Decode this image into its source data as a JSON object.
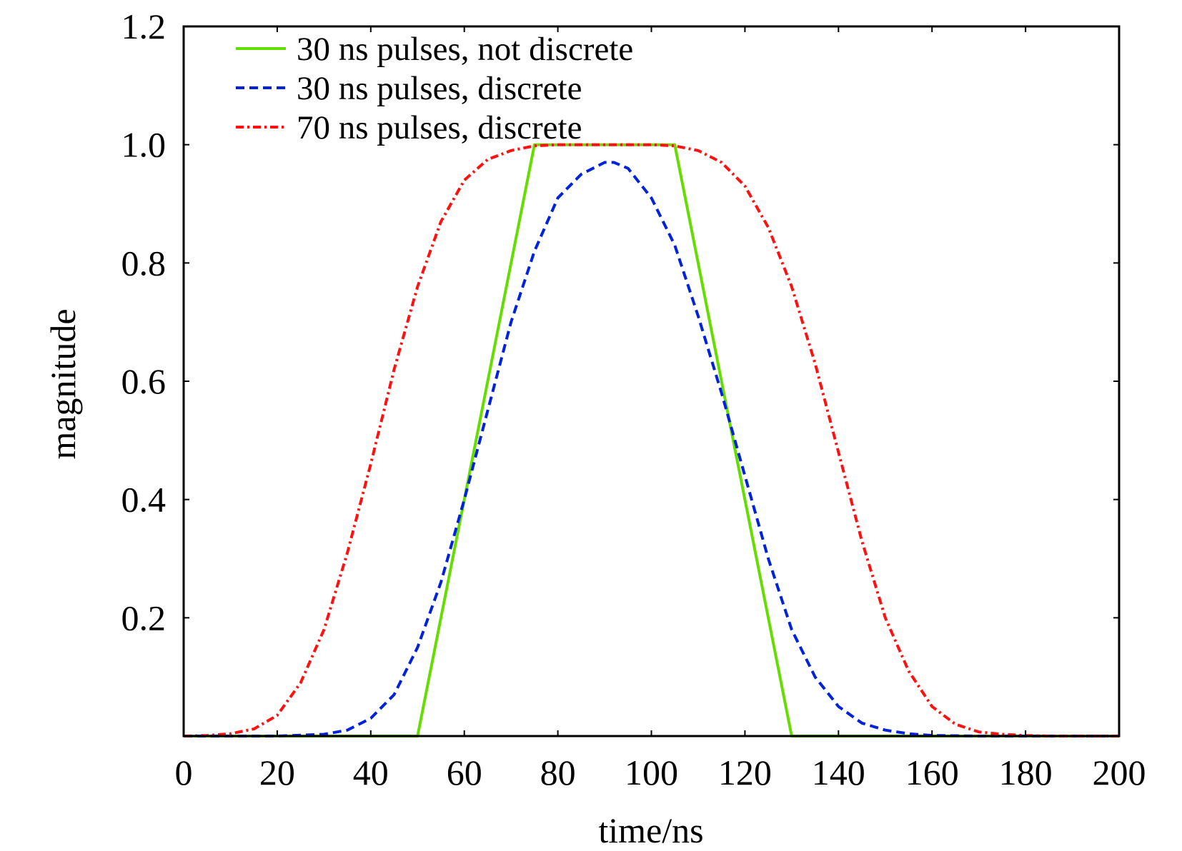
{
  "chart_data": {
    "type": "line",
    "title": "",
    "xlabel": "time/ns",
    "ylabel": "magnitude",
    "xlim": [
      0,
      200
    ],
    "ylim": [
      0,
      1.2
    ],
    "xticks": [
      0,
      20,
      40,
      60,
      80,
      100,
      120,
      140,
      160,
      180,
      200
    ],
    "xtick_labels": [
      "0",
      "20",
      "40",
      "60",
      "80",
      "100",
      "120",
      "140",
      "160",
      "180",
      "200"
    ],
    "yticks": [
      0.2,
      0.4,
      0.6,
      0.8,
      1.0,
      1.2
    ],
    "ytick_labels": [
      "0.2",
      "0.4",
      "0.6",
      "0.8",
      "1.0",
      "1.2"
    ],
    "grid": false,
    "legend_position": "top-left",
    "series": [
      {
        "name": "30 ns pulses, not discrete",
        "color": "#66dd00",
        "dash": "solid",
        "x": [
          0,
          50,
          75,
          105,
          130,
          200
        ],
        "y": [
          0,
          0,
          1.0,
          1.0,
          0,
          0
        ]
      },
      {
        "name": "30 ns pulses, discrete",
        "color": "#0022dd",
        "dash": "dashed",
        "x": [
          0,
          20,
          30,
          35,
          40,
          45,
          50,
          55,
          60,
          65,
          70,
          75,
          80,
          85,
          90,
          92,
          95,
          100,
          105,
          110,
          115,
          120,
          125,
          130,
          135,
          140,
          145,
          150,
          155,
          160,
          170,
          200
        ],
        "y": [
          0,
          0,
          0.003,
          0.01,
          0.03,
          0.07,
          0.15,
          0.26,
          0.4,
          0.55,
          0.7,
          0.82,
          0.91,
          0.95,
          0.97,
          0.97,
          0.96,
          0.91,
          0.83,
          0.71,
          0.58,
          0.44,
          0.3,
          0.18,
          0.1,
          0.05,
          0.022,
          0.01,
          0.004,
          0.001,
          0,
          0
        ]
      },
      {
        "name": "70 ns pulses, discrete",
        "color": "#ff1111",
        "dash": "dashdot",
        "x": [
          0,
          5,
          10,
          15,
          20,
          25,
          30,
          35,
          40,
          45,
          50,
          55,
          60,
          65,
          70,
          75,
          80,
          100,
          105,
          110,
          115,
          120,
          125,
          130,
          135,
          140,
          145,
          150,
          155,
          160,
          165,
          170,
          175,
          180,
          185,
          190,
          200
        ],
        "y": [
          0,
          0.001,
          0.004,
          0.012,
          0.035,
          0.09,
          0.18,
          0.31,
          0.46,
          0.62,
          0.76,
          0.87,
          0.94,
          0.975,
          0.99,
          0.998,
          1.0,
          1.0,
          0.998,
          0.99,
          0.97,
          0.93,
          0.86,
          0.76,
          0.63,
          0.48,
          0.33,
          0.2,
          0.11,
          0.05,
          0.02,
          0.007,
          0.003,
          0.001,
          0,
          0,
          0
        ]
      }
    ]
  }
}
